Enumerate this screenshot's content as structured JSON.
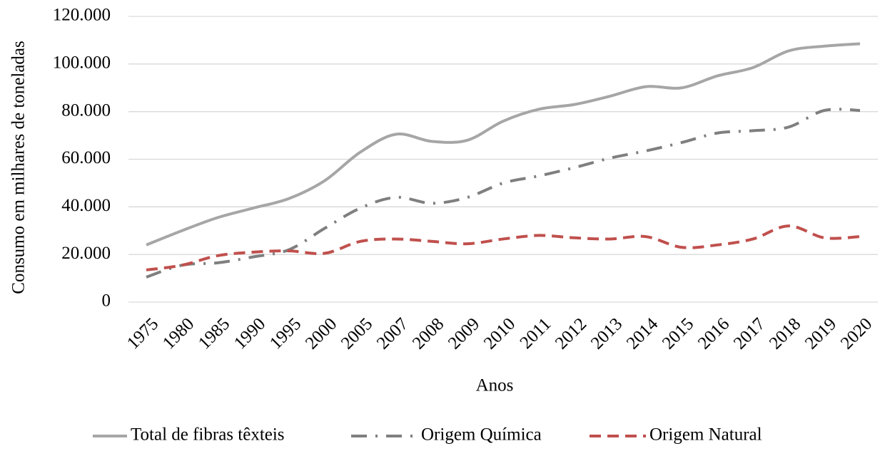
{
  "chart_data": {
    "type": "line",
    "y_label": "Consumo em milhares de toneladas",
    "x_label": "Anos",
    "categories": [
      "1975",
      "1980",
      "1985",
      "1990",
      "1995",
      "2000",
      "2005",
      "2007",
      "2008",
      "2009",
      "2010",
      "2011",
      "2012",
      "2013",
      "2014",
      "2015",
      "2016",
      "2017",
      "2018",
      "2019",
      "2020"
    ],
    "series": [
      {
        "name": "Total de fibras têxteis",
        "color": "#a6a6a6",
        "style": "solid",
        "values": [
          24000,
          30000,
          35500,
          39500,
          43500,
          51000,
          63000,
          70500,
          67500,
          68000,
          76000,
          81000,
          83000,
          86500,
          90500,
          90000,
          95000,
          98500,
          105500,
          107500,
          108500
        ]
      },
      {
        "name": "Origem Química",
        "color": "#7f7f7f",
        "style": "dashdot",
        "values": [
          10500,
          15500,
          16500,
          19000,
          22000,
          31000,
          39500,
          44000,
          41500,
          44000,
          50000,
          53000,
          56500,
          60500,
          63500,
          67000,
          71000,
          72000,
          73500,
          80500,
          80500
        ]
      },
      {
        "name": "Origem Natural",
        "color": "#c0504d",
        "style": "dash",
        "values": [
          13500,
          15500,
          19500,
          21000,
          21500,
          20500,
          25500,
          26500,
          25500,
          24500,
          26500,
          28000,
          27000,
          26500,
          27500,
          23000,
          24000,
          26500,
          32000,
          27000,
          27500
        ]
      }
    ],
    "ylim": [
      0,
      120000
    ],
    "yticks": [
      0,
      {
        "value": 20000,
        "label": "20.000"
      },
      {
        "value": 40000,
        "label": "40.000"
      },
      {
        "value": 60000,
        "label": "60.000"
      },
      {
        "value": 80000,
        "label": "80.000"
      },
      {
        "value": 100000,
        "label": "100.000"
      },
      {
        "value": 120000,
        "label": "120.000"
      }
    ],
    "grid": true,
    "legend": "bottom"
  }
}
